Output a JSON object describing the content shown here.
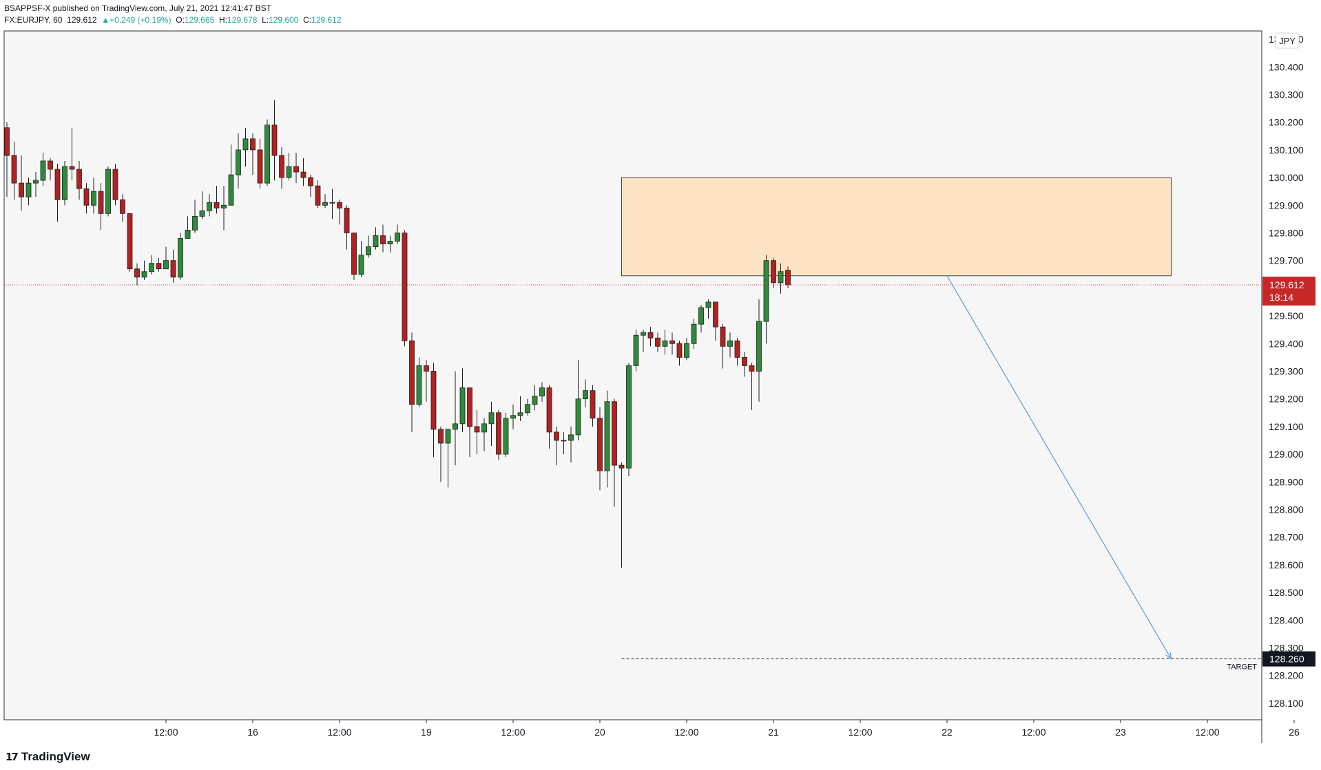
{
  "header": {
    "publisher": "BSAPPSF-X published on TradingView.com, July 21, 2021 12:41:47 BST",
    "symbol": "FX:EURJPY, 60",
    "last": "129.612",
    "change": "+0.249 (+0.19%)",
    "o_label": "O:",
    "o": "129.665",
    "h_label": "H:",
    "h": "129.678",
    "l_label": "L:",
    "l": "129.600",
    "c_label": "C:",
    "c": "129.612"
  },
  "currency_badge": "JPY",
  "price_badge": {
    "price": "129.612",
    "countdown": "18:14"
  },
  "target": {
    "label": "TARGET",
    "price": "128.260",
    "value": 128.26
  },
  "footer": {
    "brand": "TradingView"
  },
  "colors": {
    "up": "#2e8b3a",
    "down": "#b22222",
    "zone": "#fce3c4",
    "zone_border": "#444444",
    "arrow": "#5b9bd5",
    "price_line": "#d13c3c",
    "bg": "#f6f6f6"
  },
  "chart_data": {
    "type": "candlestick",
    "symbol": "FX:EURJPY",
    "interval": "60",
    "y_axis": {
      "ticks": [
        "128.100",
        "128.200",
        "128.300",
        "128.400",
        "128.500",
        "128.600",
        "128.700",
        "128.800",
        "128.900",
        "129.000",
        "129.100",
        "129.200",
        "129.300",
        "129.400",
        "129.500",
        "129.600",
        "129.700",
        "129.800",
        "129.900",
        "130.000",
        "130.100",
        "130.200",
        "130.300",
        "130.400",
        "130.500"
      ],
      "ylim": [
        128.04,
        130.53
      ]
    },
    "x_axis": {
      "ticks": [
        {
          "label": "12:00",
          "i": 22
        },
        {
          "label": "16",
          "i": 34
        },
        {
          "label": "12:00",
          "i": 46
        },
        {
          "label": "19",
          "i": 58
        },
        {
          "label": "12:00",
          "i": 70
        },
        {
          "label": "20",
          "i": 82
        },
        {
          "label": "12:00",
          "i": 94
        },
        {
          "label": "21",
          "i": 106
        },
        {
          "label": "12:00",
          "i": 118
        },
        {
          "label": "22",
          "i": 130
        },
        {
          "label": "12:00",
          "i": 142
        },
        {
          "label": "23",
          "i": 154
        },
        {
          "label": "12:00",
          "i": 166
        },
        {
          "label": "26",
          "i": 178
        }
      ]
    },
    "candles": [
      [
        130.18,
        130.08,
        130.2,
        129.93
      ],
      [
        130.08,
        129.98,
        130.13,
        129.92
      ],
      [
        129.98,
        129.93,
        130.08,
        129.88
      ],
      [
        129.93,
        129.98,
        130.0,
        129.9
      ],
      [
        129.98,
        129.99,
        130.02,
        129.93
      ],
      [
        129.99,
        130.06,
        130.09,
        129.97
      ],
      [
        130.06,
        130.03,
        130.07,
        129.99
      ],
      [
        130.03,
        129.92,
        130.05,
        129.84
      ],
      [
        129.92,
        130.04,
        130.06,
        129.9
      ],
      [
        130.04,
        130.03,
        130.18,
        129.99
      ],
      [
        130.03,
        129.96,
        130.06,
        129.92
      ],
      [
        129.96,
        129.9,
        129.98,
        129.87
      ],
      [
        129.9,
        129.95,
        130.0,
        129.87
      ],
      [
        129.95,
        129.87,
        129.98,
        129.81
      ],
      [
        129.87,
        130.03,
        130.04,
        129.86
      ],
      [
        130.03,
        129.92,
        130.05,
        129.9
      ],
      [
        129.92,
        129.87,
        129.94,
        129.84
      ],
      [
        129.87,
        129.67,
        129.87,
        129.66
      ],
      [
        129.67,
        129.64,
        129.69,
        129.61
      ],
      [
        129.64,
        129.66,
        129.7,
        129.63
      ],
      [
        129.66,
        129.69,
        129.72,
        129.65
      ],
      [
        129.69,
        129.67,
        129.71,
        129.66
      ],
      [
        129.67,
        129.7,
        129.75,
        129.67
      ],
      [
        129.7,
        129.64,
        129.74,
        129.62
      ],
      [
        129.64,
        129.78,
        129.8,
        129.63
      ],
      [
        129.78,
        129.81,
        129.86,
        129.78
      ],
      [
        129.81,
        129.86,
        129.92,
        129.8
      ],
      [
        129.86,
        129.88,
        129.95,
        129.85
      ],
      [
        129.88,
        129.91,
        129.94,
        129.86
      ],
      [
        129.91,
        129.89,
        129.97,
        129.87
      ],
      [
        129.89,
        129.9,
        129.97,
        129.81
      ],
      [
        129.9,
        130.01,
        130.12,
        129.92
      ],
      [
        130.01,
        130.1,
        130.16,
        129.96
      ],
      [
        130.1,
        130.14,
        130.18,
        130.04
      ],
      [
        130.14,
        130.1,
        130.16,
        130.01
      ],
      [
        130.1,
        129.98,
        130.14,
        129.96
      ],
      [
        129.98,
        130.19,
        130.21,
        129.97
      ],
      [
        130.19,
        130.08,
        130.28,
        129.99
      ],
      [
        130.08,
        130.0,
        130.11,
        129.96
      ],
      [
        130.0,
        130.04,
        130.09,
        129.99
      ],
      [
        130.04,
        130.02,
        130.09,
        129.98
      ],
      [
        130.02,
        130.0,
        130.07,
        129.97
      ],
      [
        130.0,
        129.97,
        130.01,
        129.93
      ],
      [
        129.97,
        129.9,
        129.99,
        129.89
      ],
      [
        129.9,
        129.91,
        129.94,
        129.89
      ],
      [
        129.91,
        129.91,
        129.96,
        129.85
      ],
      [
        129.91,
        129.89,
        129.92,
        129.83
      ],
      [
        129.89,
        129.8,
        129.9,
        129.74
      ],
      [
        129.8,
        129.65,
        129.8,
        129.63
      ],
      [
        129.65,
        129.72,
        129.77,
        129.64
      ],
      [
        129.72,
        129.75,
        129.79,
        129.71
      ],
      [
        129.75,
        129.79,
        129.82,
        129.74
      ],
      [
        129.79,
        129.76,
        129.83,
        129.73
      ],
      [
        129.76,
        129.77,
        129.79,
        129.73
      ],
      [
        129.77,
        129.8,
        129.83,
        129.76
      ],
      [
        129.8,
        129.41,
        129.81,
        129.39
      ],
      [
        129.41,
        129.18,
        129.44,
        129.08
      ],
      [
        129.18,
        129.32,
        129.35,
        129.17
      ],
      [
        129.32,
        129.3,
        129.34,
        129.19
      ],
      [
        129.3,
        129.09,
        129.33,
        128.99
      ],
      [
        129.09,
        129.04,
        129.1,
        128.9
      ],
      [
        129.04,
        129.09,
        129.09,
        128.88
      ],
      [
        129.09,
        129.11,
        129.3,
        128.96
      ],
      [
        129.11,
        129.24,
        129.31,
        129.08
      ],
      [
        129.24,
        129.1,
        129.24,
        128.99
      ],
      [
        129.1,
        129.08,
        129.16,
        129.0
      ],
      [
        129.08,
        129.11,
        129.13,
        129.01
      ],
      [
        129.11,
        129.15,
        129.19,
        129.03
      ],
      [
        129.15,
        129.0,
        129.16,
        128.98
      ],
      [
        129.0,
        129.13,
        129.15,
        128.99
      ],
      [
        129.13,
        129.14,
        129.18,
        129.09
      ],
      [
        129.14,
        129.15,
        129.21,
        129.12
      ],
      [
        129.15,
        129.18,
        129.2,
        129.14
      ],
      [
        129.18,
        129.21,
        129.25,
        129.16
      ],
      [
        129.21,
        129.24,
        129.26,
        129.19
      ],
      [
        129.24,
        129.08,
        129.25,
        129.02
      ],
      [
        129.08,
        129.05,
        129.1,
        128.96
      ],
      [
        129.05,
        129.05,
        129.08,
        129.0
      ],
      [
        129.05,
        129.07,
        129.1,
        128.97
      ],
      [
        129.07,
        129.2,
        129.34,
        129.05
      ],
      [
        129.2,
        129.23,
        129.27,
        129.17
      ],
      [
        129.23,
        129.13,
        129.25,
        129.1
      ],
      [
        129.13,
        128.94,
        129.17,
        128.87
      ],
      [
        128.94,
        129.19,
        129.23,
        128.88
      ],
      [
        129.19,
        128.96,
        129.2,
        128.81
      ],
      [
        128.96,
        128.95,
        128.97,
        128.59
      ],
      [
        128.95,
        129.32,
        129.33,
        128.92
      ],
      [
        129.32,
        129.43,
        129.45,
        129.3
      ],
      [
        129.43,
        129.44,
        129.45,
        129.37
      ],
      [
        129.44,
        129.42,
        129.46,
        129.39
      ],
      [
        129.42,
        129.39,
        129.44,
        129.37
      ],
      [
        129.39,
        129.41,
        129.45,
        129.36
      ],
      [
        129.41,
        129.4,
        129.44,
        129.36
      ],
      [
        129.4,
        129.35,
        129.41,
        129.32
      ],
      [
        129.35,
        129.4,
        129.42,
        129.34
      ],
      [
        129.4,
        129.47,
        129.49,
        129.38
      ],
      [
        129.47,
        129.53,
        129.54,
        129.44
      ],
      [
        129.53,
        129.55,
        129.56,
        129.49
      ],
      [
        129.55,
        129.46,
        129.55,
        129.41
      ],
      [
        129.46,
        129.39,
        129.47,
        129.31
      ],
      [
        129.39,
        129.41,
        129.44,
        129.35
      ],
      [
        129.41,
        129.35,
        129.42,
        129.32
      ],
      [
        129.35,
        129.32,
        129.37,
        129.28
      ],
      [
        129.32,
        129.3,
        129.33,
        129.16
      ],
      [
        129.3,
        129.48,
        129.56,
        129.19
      ],
      [
        129.48,
        129.7,
        129.72,
        129.4
      ],
      [
        129.7,
        129.62,
        129.71,
        129.6
      ],
      [
        129.62,
        129.66,
        129.69,
        129.58
      ],
      [
        129.665,
        129.612,
        129.678,
        129.6
      ]
    ],
    "zone": {
      "x_start_i": 85,
      "x_end_i": 161,
      "y_low": 129.645,
      "y_high": 130.0
    },
    "arrow": {
      "x_start_i": 130,
      "y_start": 129.645,
      "x_end_i": 161,
      "y_end": 128.26
    },
    "current_price": 129.612
  }
}
